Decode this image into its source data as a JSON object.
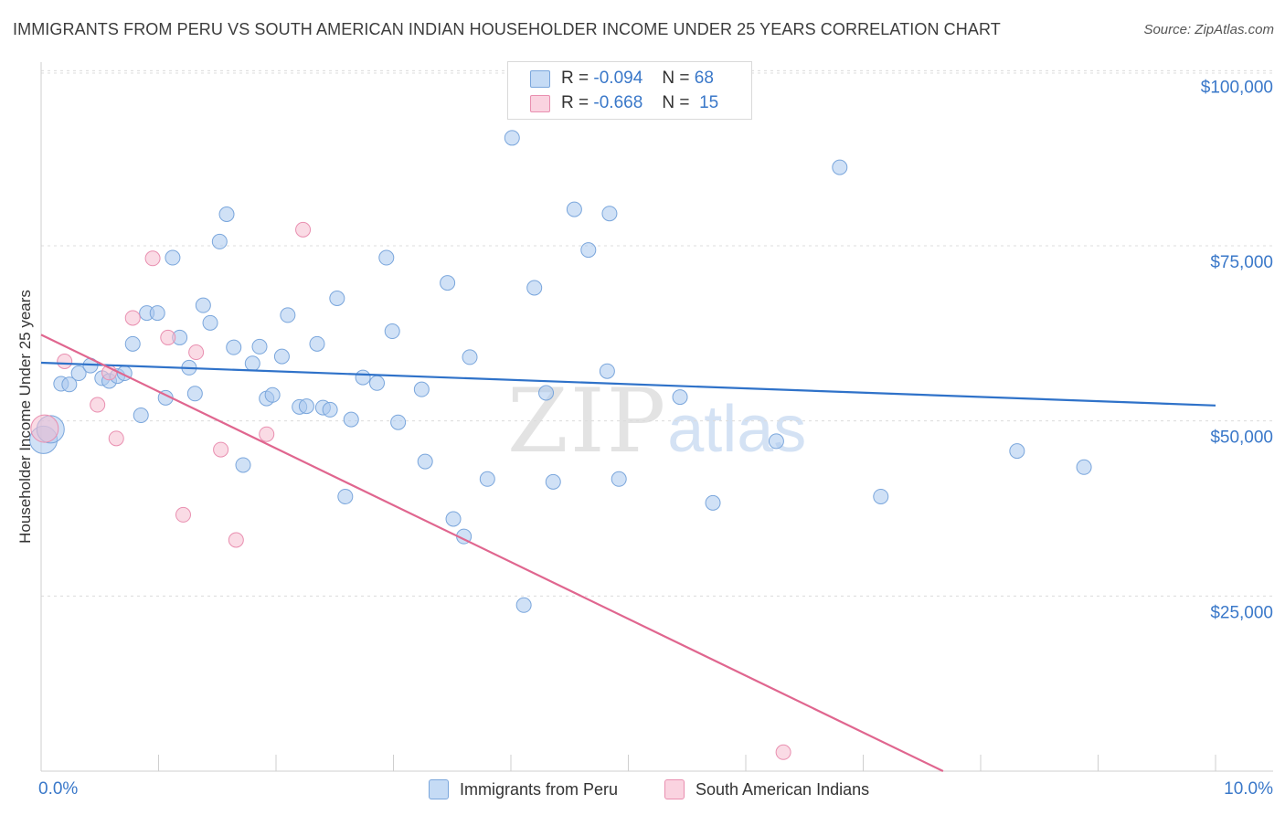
{
  "header": {
    "title": "IMMIGRANTS FROM PERU VS SOUTH AMERICAN INDIAN HOUSEHOLDER INCOME UNDER 25 YEARS CORRELATION CHART",
    "source": "Source: ZipAtlas.com"
  },
  "watermark": {
    "zip": "ZIP",
    "atlas": "atlas"
  },
  "legend": {
    "rows": [
      {
        "r_label": "R =",
        "r_value": "-0.094",
        "n_label": "N =",
        "n_value": "68",
        "color": "#a9c8ef"
      },
      {
        "r_label": "R =",
        "r_value": "-0.668",
        "n_label": "N =",
        "n_value": "15",
        "color": "#f6bed0"
      }
    ]
  },
  "bottom_legend": {
    "series1": "Immigrants from Peru",
    "series2": "South American Indians"
  },
  "colors": {
    "blue_fill": "#a9c8ef",
    "blue_stroke": "#7aa6dc",
    "blue_line": "#2f72c9",
    "pink_fill": "#f6bed0",
    "pink_stroke": "#e98fb0",
    "pink_line": "#e0668f",
    "axis_text": "#3a78c9",
    "grid": "#dcdcdc"
  },
  "chart_data": {
    "type": "scatter",
    "title": "IMMIGRANTS FROM PERU VS SOUTH AMERICAN INDIAN HOUSEHOLDER INCOME UNDER 25 YEARS CORRELATION CHART",
    "xlabel": "",
    "ylabel": "Householder Income Under 25 years",
    "xlim": [
      0,
      10
    ],
    "ylim": [
      0,
      102000
    ],
    "x_tick_labels": [
      "0.0%",
      "10.0%"
    ],
    "y_ticks": [
      25000,
      50000,
      75000,
      100000
    ],
    "y_tick_labels": [
      "$25,000",
      "$50,000",
      "$75,000",
      "$100,000"
    ],
    "grid": true,
    "series": [
      {
        "name": "Immigrants from Peru",
        "r": -0.094,
        "n": 68,
        "trend": {
          "x": [
            0,
            10
          ],
          "y": [
            58300,
            52200
          ]
        },
        "points": [
          {
            "x": 0.02,
            "y": 47300,
            "big": true
          },
          {
            "x": 0.08,
            "y": 48800,
            "big": true
          },
          {
            "x": 0.17,
            "y": 55300
          },
          {
            "x": 0.24,
            "y": 55200
          },
          {
            "x": 0.32,
            "y": 56800
          },
          {
            "x": 0.42,
            "y": 57900
          },
          {
            "x": 0.52,
            "y": 56100
          },
          {
            "x": 0.58,
            "y": 55700
          },
          {
            "x": 0.65,
            "y": 56400
          },
          {
            "x": 0.71,
            "y": 56800
          },
          {
            "x": 0.78,
            "y": 61000
          },
          {
            "x": 0.85,
            "y": 50800
          },
          {
            "x": 0.9,
            "y": 65400
          },
          {
            "x": 0.99,
            "y": 65400
          },
          {
            "x": 1.06,
            "y": 53300
          },
          {
            "x": 1.12,
            "y": 73300
          },
          {
            "x": 1.18,
            "y": 61900
          },
          {
            "x": 1.26,
            "y": 57600
          },
          {
            "x": 1.31,
            "y": 53900
          },
          {
            "x": 1.38,
            "y": 66500
          },
          {
            "x": 1.44,
            "y": 64000
          },
          {
            "x": 1.52,
            "y": 75600
          },
          {
            "x": 1.58,
            "y": 79500
          },
          {
            "x": 1.64,
            "y": 60500
          },
          {
            "x": 1.72,
            "y": 43700
          },
          {
            "x": 1.8,
            "y": 58200
          },
          {
            "x": 1.86,
            "y": 60600
          },
          {
            "x": 1.92,
            "y": 53200
          },
          {
            "x": 1.97,
            "y": 53700
          },
          {
            "x": 2.05,
            "y": 59200
          },
          {
            "x": 2.1,
            "y": 65100
          },
          {
            "x": 2.2,
            "y": 52000
          },
          {
            "x": 2.26,
            "y": 52100
          },
          {
            "x": 2.35,
            "y": 61000
          },
          {
            "x": 2.4,
            "y": 51900
          },
          {
            "x": 2.46,
            "y": 51600
          },
          {
            "x": 2.52,
            "y": 67500
          },
          {
            "x": 2.59,
            "y": 39200
          },
          {
            "x": 2.64,
            "y": 50200
          },
          {
            "x": 2.74,
            "y": 56200
          },
          {
            "x": 2.86,
            "y": 55400
          },
          {
            "x": 2.94,
            "y": 73300
          },
          {
            "x": 2.99,
            "y": 62800
          },
          {
            "x": 3.04,
            "y": 49800
          },
          {
            "x": 3.24,
            "y": 54500
          },
          {
            "x": 3.27,
            "y": 44200
          },
          {
            "x": 3.46,
            "y": 69700
          },
          {
            "x": 3.51,
            "y": 36000
          },
          {
            "x": 3.6,
            "y": 33500
          },
          {
            "x": 3.65,
            "y": 59100
          },
          {
            "x": 3.8,
            "y": 41700
          },
          {
            "x": 4.01,
            "y": 90400
          },
          {
            "x": 4.11,
            "y": 23700
          },
          {
            "x": 4.2,
            "y": 69000
          },
          {
            "x": 4.3,
            "y": 54000
          },
          {
            "x": 4.36,
            "y": 41300
          },
          {
            "x": 4.54,
            "y": 80200
          },
          {
            "x": 4.66,
            "y": 74400
          },
          {
            "x": 4.82,
            "y": 57100
          },
          {
            "x": 4.84,
            "y": 79600
          },
          {
            "x": 4.92,
            "y": 41700
          },
          {
            "x": 5.44,
            "y": 53400
          },
          {
            "x": 5.72,
            "y": 38300
          },
          {
            "x": 6.26,
            "y": 47100
          },
          {
            "x": 6.8,
            "y": 86200
          },
          {
            "x": 7.15,
            "y": 39200
          },
          {
            "x": 8.31,
            "y": 45700
          },
          {
            "x": 8.88,
            "y": 43400
          }
        ]
      },
      {
        "name": "South American Indians",
        "r": -0.668,
        "n": 15,
        "trend": {
          "x": [
            0,
            7.68
          ],
          "y": [
            62300,
            0
          ]
        },
        "points": [
          {
            "x": 0.03,
            "y": 48900,
            "big": true
          },
          {
            "x": 0.2,
            "y": 58500
          },
          {
            "x": 0.48,
            "y": 52300
          },
          {
            "x": 0.64,
            "y": 47500
          },
          {
            "x": 0.78,
            "y": 64700
          },
          {
            "x": 0.95,
            "y": 73200
          },
          {
            "x": 1.08,
            "y": 61900
          },
          {
            "x": 1.21,
            "y": 36600
          },
          {
            "x": 1.32,
            "y": 59800
          },
          {
            "x": 1.53,
            "y": 45900
          },
          {
            "x": 1.66,
            "y": 33000
          },
          {
            "x": 1.92,
            "y": 48100
          },
          {
            "x": 2.23,
            "y": 77300
          },
          {
            "x": 6.32,
            "y": 2700
          },
          {
            "x": 0.58,
            "y": 56900
          }
        ]
      }
    ]
  }
}
